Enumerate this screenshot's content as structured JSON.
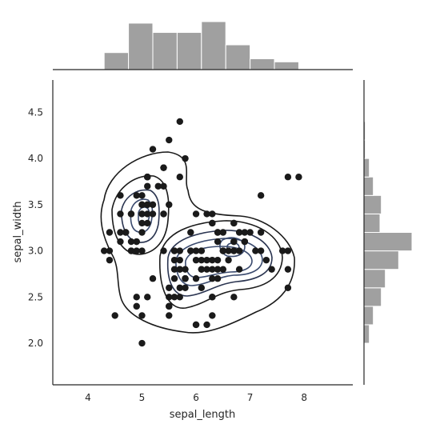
{
  "chart_data": {
    "type": "scatter",
    "variant": "jointplot with kde contours and marginal histograms",
    "title": "",
    "xlabel": "sepal_length",
    "ylabel": "sepal_width",
    "xlim": [
      3.35,
      8.9
    ],
    "ylim": [
      1.55,
      4.85
    ],
    "xticks": [
      4,
      5,
      6,
      7,
      8
    ],
    "yticks": [
      2.0,
      2.5,
      3.0,
      3.5,
      4.0,
      4.5
    ],
    "grid": false,
    "colors": {
      "points": "#1a1a1a",
      "hist": "#a0a0a0",
      "hist_edge": "#ffffff",
      "contour_outer": "#1a1a1a",
      "contour_inner": "#3a4a6e",
      "spine": "#262626"
    },
    "points": [
      [
        5.1,
        3.5
      ],
      [
        4.9,
        3.0
      ],
      [
        4.7,
        3.2
      ],
      [
        4.6,
        3.1
      ],
      [
        5.0,
        3.6
      ],
      [
        5.4,
        3.9
      ],
      [
        4.6,
        3.4
      ],
      [
        5.0,
        3.4
      ],
      [
        4.4,
        2.9
      ],
      [
        4.9,
        3.1
      ],
      [
        5.4,
        3.7
      ],
      [
        4.8,
        3.4
      ],
      [
        4.8,
        3.0
      ],
      [
        4.3,
        3.0
      ],
      [
        5.8,
        4.0
      ],
      [
        5.7,
        4.4
      ],
      [
        5.4,
        3.9
      ],
      [
        5.1,
        3.5
      ],
      [
        5.7,
        3.8
      ],
      [
        5.1,
        3.8
      ],
      [
        5.4,
        3.4
      ],
      [
        5.1,
        3.7
      ],
      [
        4.6,
        3.6
      ],
      [
        5.1,
        3.3
      ],
      [
        4.8,
        3.4
      ],
      [
        5.0,
        3.0
      ],
      [
        5.0,
        3.4
      ],
      [
        5.2,
        3.5
      ],
      [
        5.2,
        3.4
      ],
      [
        4.7,
        3.2
      ],
      [
        4.8,
        3.1
      ],
      [
        5.4,
        3.4
      ],
      [
        5.2,
        4.1
      ],
      [
        5.5,
        4.2
      ],
      [
        4.9,
        3.1
      ],
      [
        5.0,
        3.2
      ],
      [
        5.5,
        3.5
      ],
      [
        4.9,
        3.6
      ],
      [
        4.4,
        3.0
      ],
      [
        5.1,
        3.4
      ],
      [
        5.0,
        3.5
      ],
      [
        4.5,
        2.3
      ],
      [
        4.4,
        3.2
      ],
      [
        5.0,
        3.5
      ],
      [
        5.1,
        3.8
      ],
      [
        4.8,
        3.0
      ],
      [
        5.1,
        3.8
      ],
      [
        4.6,
        3.2
      ],
      [
        5.3,
        3.7
      ],
      [
        5.0,
        3.3
      ],
      [
        7.0,
        3.2
      ],
      [
        6.4,
        3.2
      ],
      [
        6.9,
        3.1
      ],
      [
        5.5,
        2.3
      ],
      [
        6.5,
        2.8
      ],
      [
        5.7,
        2.8
      ],
      [
        6.3,
        3.3
      ],
      [
        4.9,
        2.4
      ],
      [
        6.6,
        2.9
      ],
      [
        5.2,
        2.7
      ],
      [
        5.0,
        2.0
      ],
      [
        5.9,
        3.0
      ],
      [
        6.0,
        2.2
      ],
      [
        6.1,
        2.9
      ],
      [
        5.6,
        2.9
      ],
      [
        6.7,
        3.1
      ],
      [
        5.6,
        3.0
      ],
      [
        5.8,
        2.7
      ],
      [
        6.2,
        2.2
      ],
      [
        5.6,
        2.5
      ],
      [
        5.9,
        3.2
      ],
      [
        6.1,
        2.8
      ],
      [
        6.3,
        2.5
      ],
      [
        6.1,
        2.8
      ],
      [
        6.4,
        2.9
      ],
      [
        6.6,
        3.0
      ],
      [
        6.8,
        2.8
      ],
      [
        6.7,
        3.0
      ],
      [
        6.0,
        2.9
      ],
      [
        5.7,
        2.6
      ],
      [
        5.5,
        2.4
      ],
      [
        5.5,
        2.4
      ],
      [
        5.8,
        2.7
      ],
      [
        6.0,
        2.7
      ],
      [
        5.4,
        3.0
      ],
      [
        6.0,
        3.4
      ],
      [
        6.7,
        3.1
      ],
      [
        6.3,
        2.3
      ],
      [
        5.6,
        3.0
      ],
      [
        5.5,
        2.5
      ],
      [
        5.5,
        2.6
      ],
      [
        6.1,
        3.0
      ],
      [
        5.8,
        2.6
      ],
      [
        5.0,
        2.3
      ],
      [
        5.6,
        2.7
      ],
      [
        5.7,
        3.0
      ],
      [
        5.7,
        2.9
      ],
      [
        6.2,
        2.9
      ],
      [
        5.1,
        2.5
      ],
      [
        5.7,
        2.8
      ],
      [
        6.3,
        3.3
      ],
      [
        5.8,
        2.7
      ],
      [
        7.1,
        3.0
      ],
      [
        6.3,
        2.9
      ],
      [
        6.5,
        3.0
      ],
      [
        7.6,
        3.0
      ],
      [
        4.9,
        2.5
      ],
      [
        7.3,
        2.9
      ],
      [
        6.7,
        2.5
      ],
      [
        7.2,
        3.6
      ],
      [
        6.5,
        3.2
      ],
      [
        6.4,
        2.7
      ],
      [
        6.8,
        3.0
      ],
      [
        5.7,
        2.5
      ],
      [
        5.8,
        2.8
      ],
      [
        6.4,
        3.2
      ],
      [
        6.5,
        3.0
      ],
      [
        7.7,
        3.8
      ],
      [
        7.7,
        2.6
      ],
      [
        6.0,
        2.2
      ],
      [
        6.9,
        3.2
      ],
      [
        5.6,
        2.8
      ],
      [
        7.7,
        2.8
      ],
      [
        6.3,
        2.7
      ],
      [
        6.7,
        3.3
      ],
      [
        7.2,
        3.2
      ],
      [
        6.2,
        2.8
      ],
      [
        6.1,
        3.0
      ],
      [
        6.4,
        2.8
      ],
      [
        7.2,
        3.0
      ],
      [
        7.4,
        2.8
      ],
      [
        7.9,
        3.8
      ],
      [
        6.4,
        2.8
      ],
      [
        6.3,
        2.8
      ],
      [
        6.1,
        2.6
      ],
      [
        7.7,
        3.0
      ],
      [
        6.3,
        3.4
      ],
      [
        6.4,
        3.1
      ],
      [
        6.0,
        3.0
      ],
      [
        6.9,
        3.1
      ],
      [
        6.7,
        3.1
      ],
      [
        6.9,
        3.1
      ],
      [
        5.8,
        2.7
      ],
      [
        6.8,
        3.2
      ],
      [
        6.7,
        3.3
      ],
      [
        6.7,
        3.0
      ],
      [
        6.3,
        2.5
      ],
      [
        6.5,
        3.0
      ],
      [
        6.2,
        3.4
      ],
      [
        5.9,
        3.0
      ]
    ],
    "x_hist": {
      "bin_edges": [
        4.3,
        4.75,
        5.2,
        5.65,
        6.1,
        6.55,
        7.0,
        7.45,
        7.9
      ],
      "counts": [
        11,
        30,
        24,
        24,
        31,
        16,
        7,
        5
      ]
    },
    "y_hist": {
      "bin_edges": [
        2.0,
        2.2,
        2.4,
        2.6,
        2.8,
        3.0,
        3.2,
        3.4,
        3.6,
        3.8,
        4.0,
        4.2,
        4.4
      ],
      "counts": [
        4,
        7,
        13,
        16,
        26,
        36,
        12,
        13,
        7,
        4,
        1,
        1
      ]
    }
  }
}
